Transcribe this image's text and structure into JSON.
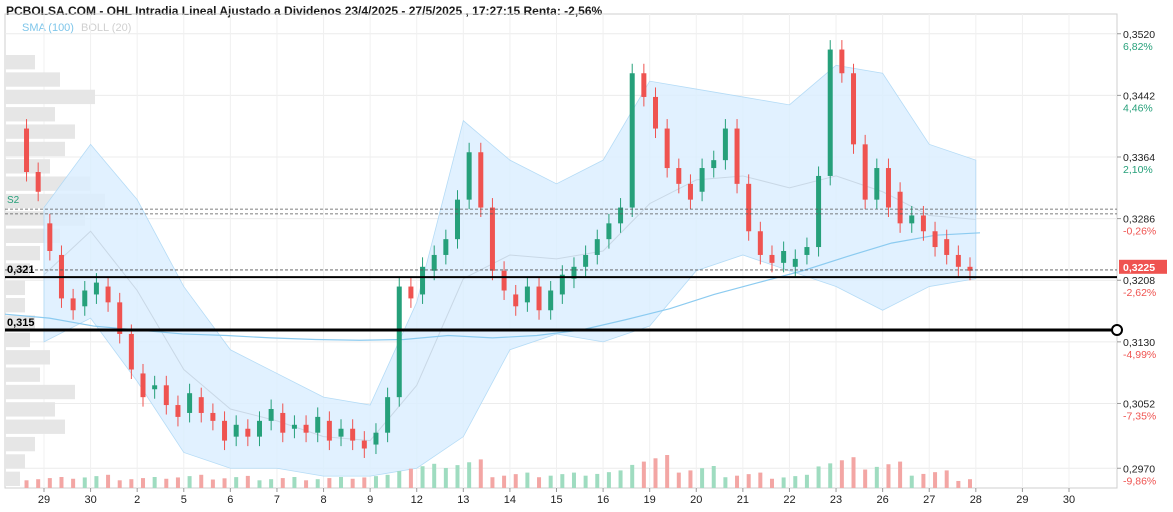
{
  "title": "PCBOLSA.COM - OHL Intradia Lineal Ajustado a Dividenos 23/4/2025 - 27/5/2025 , 17:27:15 Renta: -2,56%",
  "legend": {
    "sma": "SMA (100)",
    "boll": "BOLL (20)"
  },
  "colors": {
    "up": "#26a07a",
    "down": "#ef5350",
    "volume_up": "#9fdcc0",
    "volume_down": "#f3a6a4",
    "band_fill": "#dcefff",
    "band_line": "#a9d6f5",
    "sma": "#8ccbf0",
    "level": "#000000",
    "pct_pos": "#26a07a",
    "pct_neg": "#ef5350",
    "last_price_bg": "#ef5350"
  },
  "chart_data": {
    "type": "candlestick",
    "y_axis": {
      "range": [
        0.2945,
        0.3545
      ],
      "ticks": [
        {
          "price": "0,3520",
          "change": "6,82%"
        },
        {
          "price": "0,3442",
          "change": "4,46%"
        },
        {
          "price": "0,3364",
          "change": "2,10%"
        },
        {
          "price": "0,3286",
          "change": "-0,26%"
        },
        {
          "price": "0,3208",
          "change": "-2,62%"
        },
        {
          "price": "0,3130",
          "change": "-4,99%"
        },
        {
          "price": "0,3052",
          "change": "-7,35%"
        },
        {
          "price": "0,2970",
          "change": "-9,86%"
        }
      ],
      "tick_values": [
        0.352,
        0.3442,
        0.3364,
        0.3286,
        0.3208,
        0.313,
        0.3052,
        0.297
      ]
    },
    "x_axis": {
      "labels": [
        "29",
        "30",
        "2",
        "5",
        "6",
        "7",
        "8",
        "9",
        "12",
        "13",
        "14",
        "15",
        "16",
        "19",
        "20",
        "21",
        "22",
        "23",
        "26",
        "27",
        "28",
        "29",
        "30"
      ]
    },
    "last_price": {
      "label": "0,3225",
      "value": 0.3225
    },
    "levels": [
      {
        "label": "0,321",
        "value": 0.3212
      },
      {
        "label": "0,315",
        "value": 0.3145
      }
    ],
    "dashed_lines": [
      0.3221,
      0.3298,
      0.3292
    ],
    "marker_label": "S2",
    "days": [
      {
        "label": "29",
        "o": [
          0.34,
          0.3345,
          0.328,
          0.324
        ],
        "c": [
          0.3345,
          0.332,
          0.3245,
          0.3185
        ],
        "band": [
          0.33,
          0.313
        ],
        "vol": 0.5
      },
      {
        "label": "30",
        "o": [
          0.3185,
          0.3175,
          0.319,
          0.32
        ],
        "c": [
          0.317,
          0.3195,
          0.3205,
          0.318
        ],
        "band": [
          0.338,
          0.316
        ],
        "vol": 0.6
      },
      {
        "label": "2",
        "o": [
          0.318,
          0.314,
          0.309,
          0.307
        ],
        "c": [
          0.314,
          0.3095,
          0.306,
          0.3075
        ],
        "band": [
          0.331,
          0.308
        ],
        "vol": 0.5
      },
      {
        "label": "5",
        "o": [
          0.3075,
          0.305,
          0.304,
          0.306
        ],
        "c": [
          0.305,
          0.3035,
          0.3065,
          0.304
        ],
        "band": [
          0.32,
          0.299
        ],
        "vol": 0.6
      },
      {
        "label": "6",
        "o": [
          0.304,
          0.303,
          0.301,
          0.302
        ],
        "c": [
          0.303,
          0.3005,
          0.3025,
          0.301
        ],
        "band": [
          0.312,
          0.297
        ],
        "vol": 0.55
      },
      {
        "label": "7",
        "o": [
          0.301,
          0.303,
          0.304,
          0.302
        ],
        "c": [
          0.303,
          0.3045,
          0.3015,
          0.3025
        ],
        "band": [
          0.309,
          0.297
        ],
        "vol": 0.5
      },
      {
        "label": "8",
        "o": [
          0.3025,
          0.3015,
          0.303,
          0.301
        ],
        "c": [
          0.3015,
          0.3035,
          0.3005,
          0.302
        ],
        "band": [
          0.306,
          0.296
        ],
        "vol": 0.5
      },
      {
        "label": "9",
        "o": [
          0.302,
          0.3005,
          0.3,
          0.3015
        ],
        "c": [
          0.3005,
          0.2995,
          0.3015,
          0.306
        ],
        "band": [
          0.305,
          0.296
        ],
        "vol": 0.6
      },
      {
        "label": "12",
        "o": [
          0.306,
          0.32,
          0.319,
          0.322
        ],
        "c": [
          0.32,
          0.3185,
          0.3225,
          0.324
        ],
        "band": [
          0.318,
          0.297
        ],
        "vol": 1.1
      },
      {
        "label": "13",
        "o": [
          0.324,
          0.326,
          0.331,
          0.337
        ],
        "c": [
          0.326,
          0.331,
          0.337,
          0.33
        ],
        "band": [
          0.341,
          0.301
        ],
        "vol": 1.3
      },
      {
        "label": "14",
        "o": [
          0.33,
          0.322,
          0.319,
          0.318
        ],
        "c": [
          0.322,
          0.3195,
          0.3175,
          0.32
        ],
        "band": [
          0.336,
          0.312
        ],
        "vol": 0.7
      },
      {
        "label": "15",
        "o": [
          0.32,
          0.317,
          0.319,
          0.321
        ],
        "c": [
          0.317,
          0.3195,
          0.3215,
          0.3225
        ],
        "band": [
          0.333,
          0.314
        ],
        "vol": 0.7
      },
      {
        "label": "16",
        "o": [
          0.3225,
          0.324,
          0.326,
          0.328
        ],
        "c": [
          0.324,
          0.326,
          0.328,
          0.33
        ],
        "band": [
          0.336,
          0.313
        ],
        "vol": 0.8
      },
      {
        "label": "19",
        "o": [
          0.33,
          0.347,
          0.344,
          0.34
        ],
        "c": [
          0.347,
          0.344,
          0.34,
          0.335
        ],
        "band": [
          0.346,
          0.315
        ],
        "vol": 1.5
      },
      {
        "label": "20",
        "o": [
          0.335,
          0.333,
          0.332,
          0.335
        ],
        "c": [
          0.333,
          0.331,
          0.335,
          0.336
        ],
        "band": [
          0.345,
          0.322
        ],
        "vol": 1.0
      },
      {
        "label": "21",
        "o": [
          0.336,
          0.34,
          0.333,
          0.327
        ],
        "c": [
          0.34,
          0.333,
          0.327,
          0.324
        ],
        "band": [
          0.344,
          0.324
        ],
        "vol": 0.7
      },
      {
        "label": "22",
        "o": [
          0.324,
          0.323,
          0.3225,
          0.324
        ],
        "c": [
          0.323,
          0.3245,
          0.3235,
          0.325
        ],
        "band": [
          0.343,
          0.322
        ],
        "vol": 0.6
      },
      {
        "label": "23",
        "o": [
          0.325,
          0.334,
          0.35,
          0.347
        ],
        "c": [
          0.334,
          0.35,
          0.347,
          0.338
        ],
        "band": [
          0.348,
          0.32
        ],
        "vol": 1.4
      },
      {
        "label": "26",
        "o": [
          0.338,
          0.331,
          0.335,
          0.332
        ],
        "c": [
          0.331,
          0.335,
          0.33,
          0.328
        ],
        "band": [
          0.347,
          0.317
        ],
        "vol": 1.2
      },
      {
        "label": "27",
        "o": [
          0.328,
          0.329,
          0.327,
          0.326
        ],
        "c": [
          0.329,
          0.327,
          0.325,
          0.324
        ],
        "band": [
          0.338,
          0.32
        ],
        "vol": 0.8
      },
      {
        "label": "28",
        "o": [
          0.324,
          0.3225
        ],
        "c": [
          0.3225,
          0.322
        ],
        "band": [
          0.336,
          0.321
        ],
        "vol": 0.4
      }
    ],
    "sma_series": [
      0.3165,
      0.316,
      0.315,
      0.3145,
      0.314,
      0.3138,
      0.3135,
      0.3133,
      0.3132,
      0.3133,
      0.3138,
      0.3135,
      0.3138,
      0.3145,
      0.3158,
      0.3172,
      0.319,
      0.3205,
      0.322,
      0.3238,
      0.3255,
      0.3265,
      0.3268
    ],
    "volume_profile": [
      0.3,
      0.55,
      0.9,
      0.5,
      0.7,
      0.6,
      0.45,
      0.85,
      1.0,
      0.8,
      0.55,
      0.35,
      0.25,
      0.2,
      0.2,
      0.3,
      0.25,
      0.45,
      0.35,
      0.7,
      0.5,
      0.6,
      0.3,
      0.2,
      0.15
    ]
  }
}
